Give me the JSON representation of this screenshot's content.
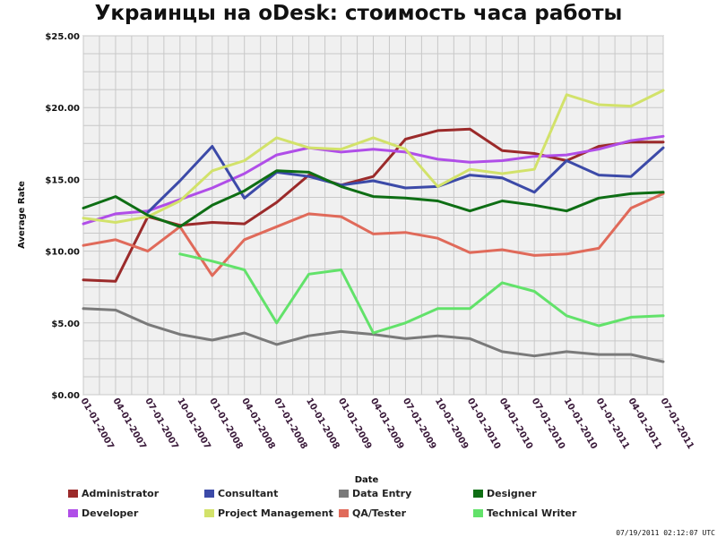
{
  "chart_data": {
    "type": "line",
    "title": "Украинцы на oDesk: стоимость часа работы",
    "xlabel": "Date",
    "ylabel": "Average Rate",
    "ylim": [
      0,
      25
    ],
    "y_ticks": [
      "$0.00",
      "$5.00",
      "$10.00",
      "$15.00",
      "$20.00",
      "$25.00"
    ],
    "grid": true,
    "legend_position": "bottom",
    "x": [
      "01-01-2007",
      "04-01-2007",
      "07-01-2007",
      "10-01-2007",
      "01-01-2008",
      "04-01-2008",
      "07-01-2008",
      "10-01-2008",
      "01-01-2009",
      "04-01-2009",
      "07-01-2009",
      "10-01-2009",
      "01-01-2010",
      "04-01-2010",
      "07-01-2010",
      "10-01-2010",
      "01-01-2011",
      "04-01-2011",
      "07-01-2011"
    ],
    "series": [
      {
        "name": "Administrator",
        "color": "#9b2a2a",
        "values": [
          8.0,
          7.9,
          12.4,
          11.8,
          12.0,
          11.9,
          13.4,
          15.3,
          14.6,
          15.2,
          17.8,
          18.4,
          18.5,
          17.0,
          16.8,
          16.3,
          17.3,
          17.6,
          17.6
        ]
      },
      {
        "name": "Developer",
        "color": "#b04ee8",
        "values": [
          11.9,
          12.6,
          12.8,
          13.6,
          14.4,
          15.4,
          16.7,
          17.2,
          16.9,
          17.1,
          16.9,
          16.4,
          16.2,
          16.3,
          16.6,
          16.7,
          17.1,
          17.7,
          18.0
        ]
      },
      {
        "name": "Consultant",
        "color": "#3c4aa8",
        "values": [
          null,
          null,
          12.7,
          14.9,
          17.3,
          13.7,
          15.5,
          15.2,
          14.6,
          14.9,
          14.4,
          14.5,
          15.3,
          15.1,
          14.1,
          16.3,
          15.3,
          15.2,
          17.2
        ]
      },
      {
        "name": "Project Management",
        "color": "#d2e26a",
        "values": [
          12.3,
          12.0,
          12.4,
          13.5,
          15.6,
          16.3,
          17.9,
          17.2,
          17.1,
          17.9,
          17.1,
          14.5,
          15.7,
          15.4,
          15.7,
          20.9,
          20.2,
          20.1,
          21.2
        ]
      },
      {
        "name": "Data Entry",
        "color": "#7a7a7a",
        "values": [
          6.0,
          5.9,
          4.9,
          4.2,
          3.8,
          4.3,
          3.5,
          4.1,
          4.4,
          4.2,
          3.9,
          4.1,
          3.9,
          3.0,
          2.7,
          3.0,
          2.8,
          2.8,
          2.3
        ]
      },
      {
        "name": "QA/Tester",
        "color": "#e06a5a",
        "values": [
          10.4,
          10.8,
          10.0,
          11.7,
          8.3,
          10.8,
          11.7,
          12.6,
          12.4,
          11.2,
          11.3,
          10.9,
          9.9,
          10.1,
          9.7,
          9.8,
          10.2,
          13.0,
          14.0
        ]
      },
      {
        "name": "Designer",
        "color": "#0e6e14",
        "values": [
          13.0,
          13.8,
          12.5,
          11.7,
          13.2,
          14.2,
          15.6,
          15.5,
          14.5,
          13.8,
          13.7,
          13.5,
          12.8,
          13.5,
          13.2,
          12.8,
          13.7,
          14.0,
          14.1
        ]
      },
      {
        "name": "Technical Writer",
        "color": "#62e26a",
        "values": [
          null,
          null,
          null,
          9.8,
          9.3,
          8.7,
          5.0,
          8.4,
          8.7,
          4.3,
          5.0,
          6.0,
          6.0,
          7.8,
          7.2,
          5.5,
          4.8,
          5.4,
          5.5
        ]
      }
    ],
    "footer": "07/19/2011 02:12:07 UTC"
  }
}
